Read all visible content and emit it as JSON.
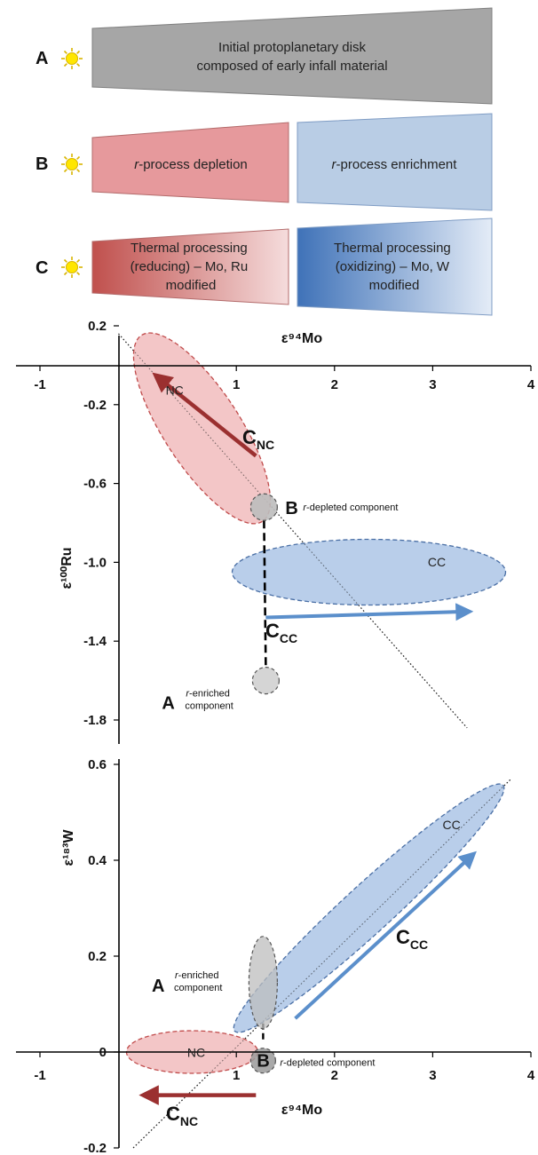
{
  "stages": {
    "a": {
      "letter": "A",
      "line1": "Initial protoplanetary disk",
      "line2": "composed of early infall material"
    },
    "b": {
      "letter": "B",
      "left_prefix": "r",
      "left_text": "-process depletion",
      "right_prefix": "r",
      "right_text": "-process enrichment"
    },
    "c": {
      "letter": "C",
      "left_lines": [
        "Thermal processing",
        "(reducing) – Mo, Ru",
        "modified"
      ],
      "right_lines": [
        "Thermal processing",
        "(oxidizing) – Mo, W",
        "modified"
      ]
    }
  },
  "colors": {
    "gray_fill": "#a6a6a6",
    "red_fill": "#e6999c",
    "blue_fill": "#b9cde5",
    "ellipse_red": "#f2c0c1",
    "ellipse_blue": "#adc6e6",
    "arrow_red": "#9b3030",
    "arrow_blue": "#5b8fcb",
    "gray_circle": "#bdbdbd"
  },
  "chart_data": [
    {
      "type": "scatter",
      "title": "",
      "xlabel": "ε⁹⁴Mo",
      "ylabel": "ε¹⁰⁰Ru",
      "xlim": [
        -1,
        4
      ],
      "ylim": [
        -1.8,
        0.2
      ],
      "x_ticks": [
        "-1",
        "1",
        "2",
        "3",
        "4"
      ],
      "y_ticks": [
        "0.2",
        "-0.2",
        "-0.6",
        "-1.0",
        "-1.4",
        "-1.8"
      ],
      "regions": [
        {
          "label": "NC",
          "center": [
            0.65,
            -0.32
          ],
          "description": "red ellipse tilted along the dotted line"
        },
        {
          "label": "CC",
          "center": [
            2.35,
            -1.05
          ],
          "description": "blue horizontal ellipse"
        }
      ],
      "components": [
        {
          "letter": "B",
          "prefix": "r",
          "label": "-depleted component",
          "x": 1.3,
          "y": -0.72
        },
        {
          "letter": "A",
          "prefix": "r",
          "label_line1": "-enriched",
          "label_line2": "component",
          "x": 1.3,
          "y": -1.6
        }
      ],
      "arrows": [
        {
          "label": "C",
          "subscript": "NC",
          "from": [
            1.2,
            -0.46
          ],
          "to": [
            0.2,
            -0.06
          ]
        },
        {
          "label": "C",
          "subscript": "CC",
          "from": [
            1.3,
            -1.28
          ],
          "to": [
            3.35,
            -1.25
          ]
        }
      ]
    },
    {
      "type": "scatter",
      "title": "",
      "xlabel": "ε⁹⁴Mo",
      "ylabel": "ε¹⁸³W",
      "xlim": [
        -1,
        4
      ],
      "ylim": [
        -0.2,
        0.6
      ],
      "x_ticks": [
        "-1",
        "1",
        "2",
        "3",
        "4"
      ],
      "y_ticks": [
        "0.6",
        "0.4",
        "0.2",
        "0",
        "-0.2"
      ],
      "regions": [
        {
          "label": "NC",
          "center": [
            0.55,
            0.0
          ],
          "description": "red horizontal ellipse"
        },
        {
          "label": "CC",
          "center": [
            2.35,
            0.3
          ],
          "description": "blue elongated ellipse along the dotted line"
        }
      ],
      "components": [
        {
          "letter": "A",
          "prefix": "r",
          "label_line1": "-enriched",
          "label_line2": "component",
          "x": 1.3,
          "y": 0.13
        },
        {
          "letter": "B",
          "prefix": "r",
          "label": "-depleted component",
          "x": 1.3,
          "y": -0.005
        }
      ],
      "arrows": [
        {
          "label": "C",
          "subscript": "CC",
          "from": [
            1.6,
            0.07
          ],
          "to": [
            3.4,
            0.41
          ]
        },
        {
          "label": "C",
          "subscript": "NC",
          "from": [
            1.2,
            -0.09
          ],
          "to": [
            0.08,
            -0.09
          ]
        }
      ]
    }
  ]
}
